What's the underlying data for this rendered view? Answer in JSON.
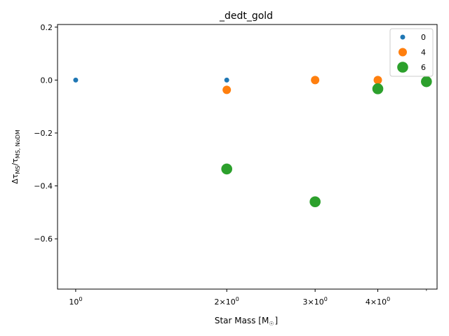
{
  "chart_data": {
    "type": "scatter",
    "title": "_dedt_gold",
    "xlabel": "Star Mass [M$_\\odot$]",
    "xlabel_main": "Star Mass [M",
    "xlabel_sub": "☉",
    "xlabel_close": "]",
    "ylabel": "Δτ_MS/τ_MS, NoDM",
    "x_scale": "log",
    "xlim": [
      0.92,
      5.25
    ],
    "ylim": [
      -0.79,
      0.21
    ],
    "x_ticks": [
      {
        "value": 1,
        "base": "10",
        "exp": "0",
        "mult": ""
      },
      {
        "value": 2,
        "base": "10",
        "exp": "0",
        "mult": "2×"
      },
      {
        "value": 3,
        "base": "10",
        "exp": "0",
        "mult": "3×"
      },
      {
        "value": 4,
        "base": "10",
        "exp": "0",
        "mult": "4×"
      }
    ],
    "x_minor_ticks": [
      5
    ],
    "y_ticks": [
      {
        "value": 0.2,
        "label": "0.2"
      },
      {
        "value": 0.0,
        "label": "0.0"
      },
      {
        "value": -0.2,
        "label": "−0.2"
      },
      {
        "value": -0.4,
        "label": "−0.4"
      },
      {
        "value": -0.6,
        "label": "−0.6"
      }
    ],
    "grid": false,
    "legend_position": "top-right",
    "series": [
      {
        "name": "0",
        "color": "#1f77b4",
        "size": "small",
        "points": [
          {
            "x": 1,
            "y": 0.0
          },
          {
            "x": 2,
            "y": 0.0
          },
          {
            "x": 3,
            "y": 0.0
          },
          {
            "x": 4,
            "y": 0.0
          },
          {
            "x": 5,
            "y": 0.0
          }
        ]
      },
      {
        "name": "4",
        "color": "#ff7f0e",
        "size": "medium",
        "points": [
          {
            "x": 2,
            "y": -0.037
          },
          {
            "x": 3,
            "y": 0.0
          },
          {
            "x": 4,
            "y": 0.0
          },
          {
            "x": 5,
            "y": 0.0
          }
        ]
      },
      {
        "name": "6",
        "color": "#2ca02c",
        "size": "large",
        "points": [
          {
            "x": 2,
            "y": -0.336
          },
          {
            "x": 3,
            "y": -0.46
          },
          {
            "x": 4,
            "y": -0.033
          },
          {
            "x": 5,
            "y": -0.006
          }
        ]
      }
    ]
  }
}
